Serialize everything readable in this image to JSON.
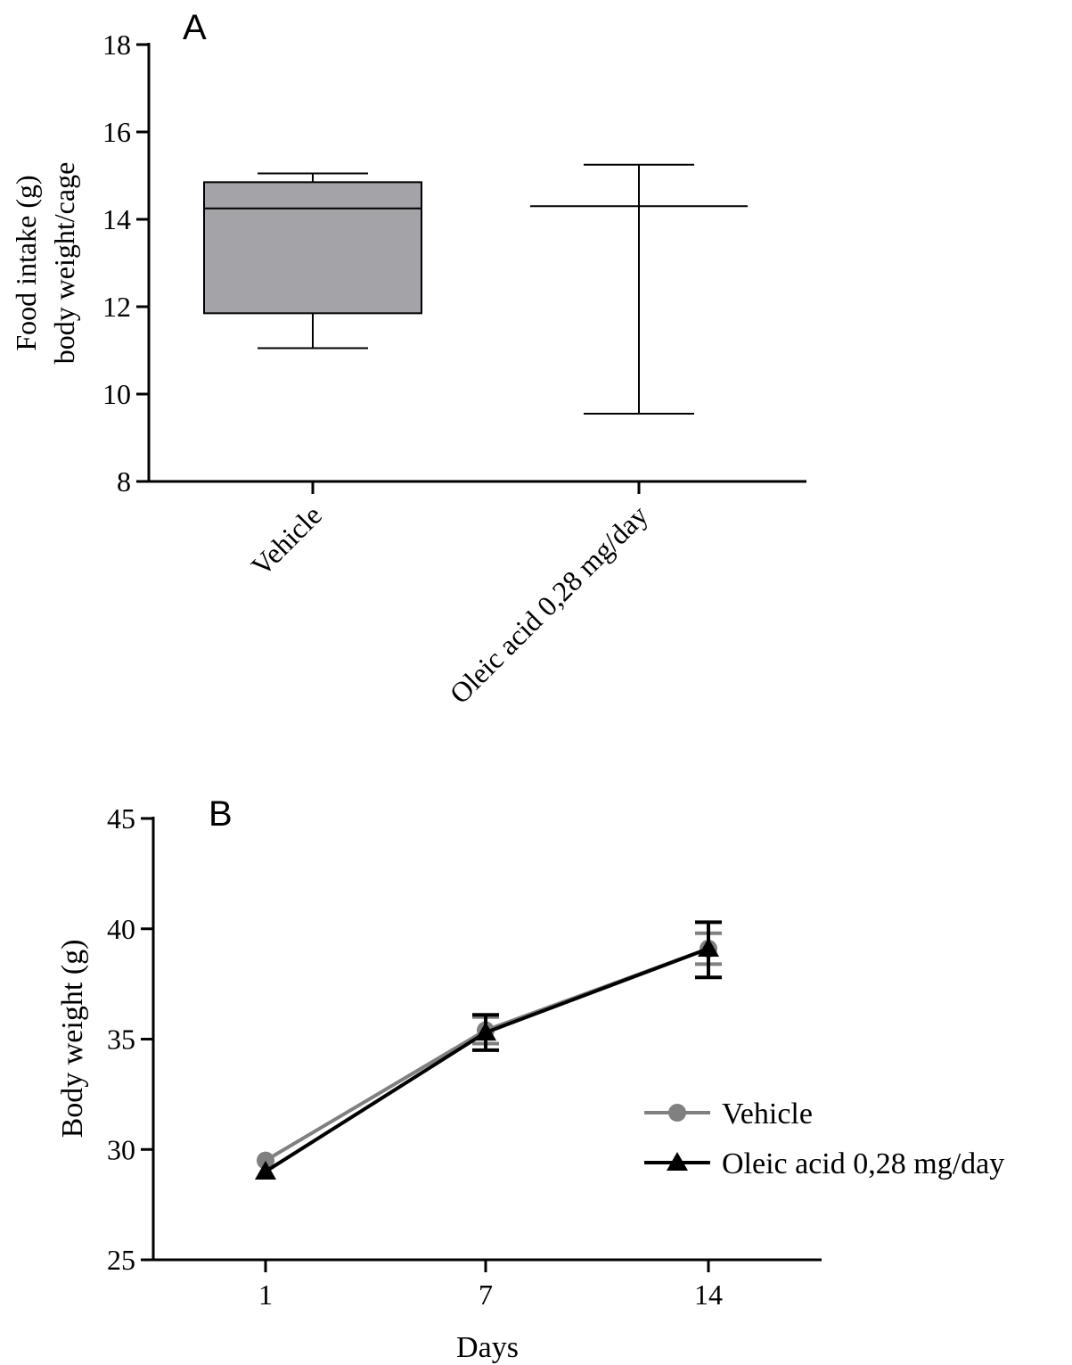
{
  "chart_data": [
    {
      "panel_label": "A",
      "type": "box",
      "ylabel_line1": "Food intake (g)",
      "ylabel_line2": "body weight/cage",
      "ylim": [
        8,
        18
      ],
      "yticks": [
        "8",
        "10",
        "12",
        "14",
        "16",
        "18"
      ],
      "categories": [
        "Vehicle",
        "Oleic acid 0,28 mg/day"
      ],
      "boxes": [
        {
          "category": "Vehicle",
          "min": 11.05,
          "q1": 11.85,
          "median": 14.25,
          "q3": 14.85,
          "max": 15.05,
          "fill": "#a3a3a8"
        },
        {
          "category": "Oleic acid 0,28 mg/day",
          "min": 9.55,
          "q1": 14.3,
          "median": 14.3,
          "q3": 14.3,
          "max": 15.25,
          "fill": "#ffffff"
        }
      ]
    },
    {
      "panel_label": "B",
      "type": "line",
      "ylabel": "Body weight (g)",
      "xlabel": "Days",
      "ylim": [
        25,
        45
      ],
      "yticks": [
        "25",
        "30",
        "35",
        "40",
        "45"
      ],
      "x": [
        "1",
        "7",
        "14"
      ],
      "legend_position": "right",
      "series": [
        {
          "name": "Vehicle",
          "marker": "circle",
          "color": "#808080",
          "values": [
            29.5,
            35.4,
            39.1
          ],
          "err_low": [
            null,
            34.8,
            38.4
          ],
          "err_high": [
            null,
            36.0,
            39.8
          ]
        },
        {
          "name": "Oleic acid 0,28 mg/day",
          "marker": "triangle",
          "color": "#000000",
          "values": [
            29.0,
            35.3,
            39.1
          ],
          "err_low": [
            null,
            34.5,
            37.8
          ],
          "err_high": [
            null,
            36.1,
            40.3
          ]
        }
      ]
    }
  ]
}
